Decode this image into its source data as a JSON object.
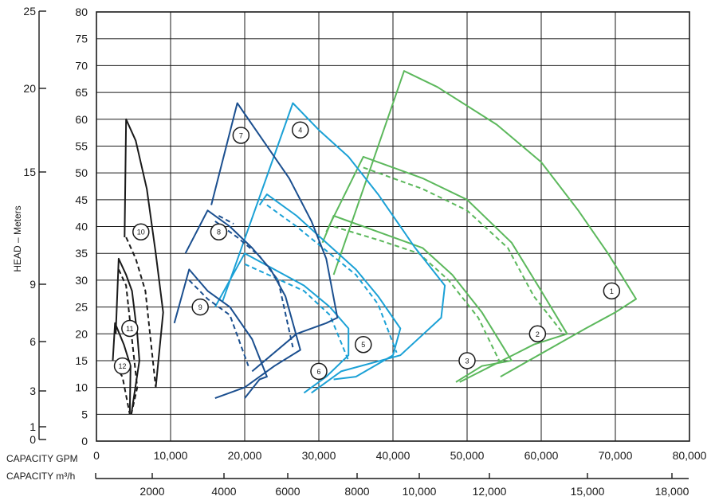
{
  "chart_data": {
    "type": "line",
    "ylabel": "HEAD – Meters",
    "x_axes": [
      {
        "label": "CAPACITY GPM",
        "unit": "GPM",
        "range": [
          0,
          80000
        ],
        "ticks": [
          "0",
          "10,000",
          "20,000",
          "30,000",
          "40,000",
          "50,000",
          "60,000",
          "70,000",
          "80,000"
        ]
      },
      {
        "label": "CAPACITY m³/h",
        "unit": "m3/h",
        "ticks": [
          "2000",
          "4000",
          "6000",
          "8000",
          "10,000",
          "12,000",
          "15,000",
          "18,000"
        ]
      }
    ],
    "y_axes": [
      {
        "side": "inner",
        "range": [
          0,
          80
        ],
        "ticks": [
          "0",
          "5",
          "10",
          "15",
          "20",
          "25",
          "30",
          "35",
          "40",
          "45",
          "50",
          "55",
          "60",
          "65",
          "70",
          "75",
          "80"
        ]
      },
      {
        "side": "outer",
        "ticks": [
          "0",
          "1",
          "3",
          "6",
          "9",
          "15",
          "20",
          "25"
        ]
      }
    ],
    "grid": true,
    "colors": {
      "green": "#5cb85c",
      "lightblue": "#1ba1d6",
      "darkblue": "#1b4f8f",
      "black": "#1a1a1a"
    },
    "series": [
      {
        "name": "1",
        "color": "green",
        "dashed": false,
        "points": [
          [
            32000,
            31
          ],
          [
            41500,
            69
          ],
          [
            46000,
            66
          ],
          [
            54000,
            59
          ],
          [
            60000,
            52
          ],
          [
            65000,
            43
          ],
          [
            69000,
            35
          ],
          [
            72800,
            26.5
          ],
          [
            70000,
            24
          ],
          [
            66000,
            21
          ],
          [
            54500,
            12
          ]
        ]
      },
      {
        "name": "2",
        "color": "green",
        "dashed": false,
        "points": [
          [
            31000,
            39
          ],
          [
            36000,
            53
          ],
          [
            44000,
            49
          ],
          [
            50000,
            45
          ],
          [
            56000,
            37
          ],
          [
            60000,
            28
          ],
          [
            63500,
            20
          ],
          [
            59000,
            18
          ],
          [
            49000,
            11
          ]
        ]
      },
      {
        "name": "2",
        "color": "green",
        "dashed": true,
        "points": [
          [
            36000,
            51
          ],
          [
            44000,
            47
          ],
          [
            50000,
            43
          ],
          [
            55500,
            36
          ],
          [
            59000,
            27
          ],
          [
            63000,
            20
          ]
        ]
      },
      {
        "name": "3",
        "color": "green",
        "dashed": false,
        "points": [
          [
            30500,
            37
          ],
          [
            32000,
            42
          ],
          [
            38000,
            39
          ],
          [
            44000,
            36
          ],
          [
            48000,
            31
          ],
          [
            52000,
            24
          ],
          [
            56000,
            15
          ],
          [
            52000,
            14
          ],
          [
            48500,
            11
          ]
        ]
      },
      {
        "name": "3",
        "color": "green",
        "dashed": true,
        "points": [
          [
            32000,
            40
          ],
          [
            38000,
            37.5
          ],
          [
            43500,
            35
          ],
          [
            47500,
            30
          ],
          [
            51500,
            23
          ],
          [
            54500,
            14.5
          ]
        ]
      },
      {
        "name": "4",
        "color": "lightblue",
        "dashed": false,
        "points": [
          [
            17000,
            26
          ],
          [
            26500,
            63
          ],
          [
            30000,
            58
          ],
          [
            34000,
            53
          ],
          [
            38000,
            46
          ],
          [
            43000,
            36
          ],
          [
            47000,
            29
          ],
          [
            46500,
            23
          ],
          [
            41000,
            16
          ],
          [
            33000,
            13
          ],
          [
            29000,
            9
          ]
        ]
      },
      {
        "name": "5",
        "color": "lightblue",
        "dashed": false,
        "points": [
          [
            22000,
            44
          ],
          [
            23000,
            46
          ],
          [
            27000,
            42
          ],
          [
            31000,
            37
          ],
          [
            35000,
            32
          ],
          [
            38000,
            27
          ],
          [
            41000,
            21
          ],
          [
            40000,
            16
          ],
          [
            35000,
            12
          ],
          [
            32000,
            11.5
          ]
        ]
      },
      {
        "name": "5",
        "color": "lightblue",
        "dashed": true,
        "points": [
          [
            23000,
            44
          ],
          [
            27000,
            40
          ],
          [
            31000,
            35.5
          ],
          [
            35000,
            31
          ],
          [
            38000,
            25.5
          ],
          [
            40500,
            16.5
          ]
        ]
      },
      {
        "name": "6",
        "color": "lightblue",
        "dashed": false,
        "points": [
          [
            16000,
            25
          ],
          [
            20000,
            35
          ],
          [
            24000,
            32
          ],
          [
            28000,
            29
          ],
          [
            31500,
            25
          ],
          [
            34000,
            21
          ],
          [
            34000,
            16
          ],
          [
            31000,
            12
          ],
          [
            28000,
            9
          ]
        ]
      },
      {
        "name": "6",
        "color": "lightblue",
        "dashed": true,
        "points": [
          [
            20000,
            33
          ],
          [
            24000,
            30.5
          ],
          [
            28000,
            28
          ],
          [
            31500,
            23.5
          ],
          [
            34000,
            15
          ]
        ]
      },
      {
        "name": "7",
        "color": "darkblue",
        "dashed": false,
        "points": [
          [
            15500,
            44
          ],
          [
            19000,
            63
          ],
          [
            23000,
            55
          ],
          [
            26000,
            49
          ],
          [
            29000,
            41
          ],
          [
            31000,
            34
          ],
          [
            32500,
            23
          ],
          [
            31000,
            22
          ],
          [
            27000,
            20
          ],
          [
            21000,
            13
          ]
        ]
      },
      {
        "name": "7",
        "color": "darkblue",
        "dashed": true,
        "points": [
          [
            16500,
            42
          ],
          [
            18500,
            40.5
          ]
        ]
      },
      {
        "name": "8",
        "color": "darkblue",
        "dashed": false,
        "points": [
          [
            12000,
            35
          ],
          [
            15000,
            43
          ],
          [
            18000,
            40
          ],
          [
            21000,
            36
          ],
          [
            23500,
            32
          ],
          [
            25500,
            27
          ],
          [
            27500,
            17
          ],
          [
            24000,
            14
          ],
          [
            20000,
            10
          ],
          [
            16000,
            8
          ]
        ]
      },
      {
        "name": "8",
        "color": "darkblue",
        "dashed": true,
        "points": [
          [
            16000,
            41
          ],
          [
            19000,
            38
          ],
          [
            22000,
            34.5
          ],
          [
            24500,
            30
          ],
          [
            26500,
            17.5
          ]
        ]
      },
      {
        "name": "9",
        "color": "darkblue",
        "dashed": false,
        "points": [
          [
            10500,
            22
          ],
          [
            12500,
            32
          ],
          [
            15000,
            28
          ],
          [
            18000,
            25
          ],
          [
            21000,
            19
          ],
          [
            23000,
            12
          ],
          [
            22000,
            11.5
          ],
          [
            20000,
            8
          ]
        ]
      },
      {
        "name": "9",
        "color": "darkblue",
        "dashed": true,
        "points": [
          [
            12500,
            30
          ],
          [
            15000,
            26.5
          ],
          [
            18000,
            23.5
          ],
          [
            20500,
            14
          ]
        ]
      },
      {
        "name": "10",
        "color": "black",
        "dashed": false,
        "points": [
          [
            3800,
            38
          ],
          [
            4000,
            60
          ],
          [
            5300,
            56
          ],
          [
            6800,
            47
          ],
          [
            8000,
            35
          ],
          [
            9000,
            24
          ],
          [
            8000,
            10
          ]
        ]
      },
      {
        "name": "10",
        "color": "black",
        "dashed": true,
        "points": [
          [
            4000,
            38
          ],
          [
            5300,
            34
          ],
          [
            6600,
            28
          ],
          [
            8000,
            10
          ]
        ]
      },
      {
        "name": "11",
        "color": "black",
        "dashed": false,
        "points": [
          [
            2600,
            20
          ],
          [
            3000,
            34
          ],
          [
            4000,
            31
          ],
          [
            4800,
            28
          ],
          [
            5500,
            20
          ],
          [
            5800,
            15
          ],
          [
            4700,
            5
          ]
        ]
      },
      {
        "name": "11",
        "color": "black",
        "dashed": true,
        "points": [
          [
            3000,
            32
          ],
          [
            4000,
            29
          ],
          [
            5500,
            10
          ],
          [
            4700,
            5
          ]
        ]
      },
      {
        "name": "12",
        "color": "black",
        "dashed": false,
        "points": [
          [
            2200,
            15
          ],
          [
            2500,
            22
          ],
          [
            3700,
            18
          ],
          [
            4600,
            14
          ],
          [
            4500,
            5
          ]
        ]
      },
      {
        "name": "12",
        "color": "black",
        "dashed": true,
        "points": [
          [
            2500,
            14
          ],
          [
            3500,
            12
          ],
          [
            4500,
            5
          ]
        ]
      }
    ],
    "markers": [
      {
        "label": "1",
        "x": 69500,
        "y": 28
      },
      {
        "label": "2",
        "x": 59500,
        "y": 20
      },
      {
        "label": "3",
        "x": 50000,
        "y": 15
      },
      {
        "label": "4",
        "x": 27500,
        "y": 58
      },
      {
        "label": "5",
        "x": 36000,
        "y": 18
      },
      {
        "label": "6",
        "x": 30000,
        "y": 13
      },
      {
        "label": "7",
        "x": 19500,
        "y": 57
      },
      {
        "label": "8",
        "x": 16500,
        "y": 39
      },
      {
        "label": "9",
        "x": 14000,
        "y": 25
      },
      {
        "label": "10",
        "x": 6000,
        "y": 39
      },
      {
        "label": "11",
        "x": 4500,
        "y": 21
      },
      {
        "label": "12",
        "x": 3500,
        "y": 14
      }
    ]
  }
}
